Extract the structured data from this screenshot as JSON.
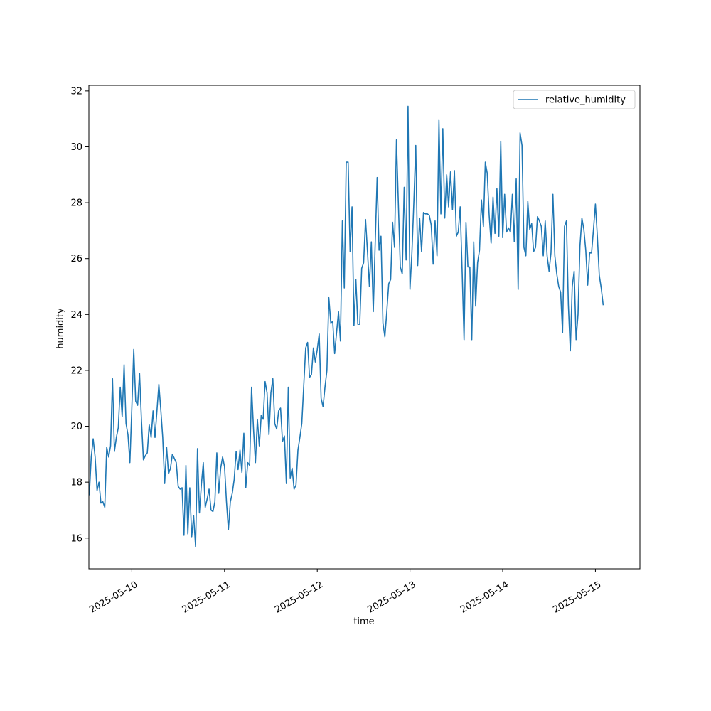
{
  "chart_data": {
    "type": "line",
    "title": "",
    "xlabel": "time",
    "ylabel": "humidity",
    "x_ticks": [
      "2025-05-10",
      "2025-05-11",
      "2025-05-12",
      "2025-05-13",
      "2025-05-14",
      "2025-05-15"
    ],
    "y_ticks": [
      "16",
      "18",
      "20",
      "22",
      "24",
      "26",
      "28",
      "30",
      "32"
    ],
    "xlim": [
      "2025-05-09 12:53",
      "2025-05-15 11:31"
    ],
    "ylim": [
      14.9,
      32.2
    ],
    "grid": false,
    "legend_position": "top-right",
    "series": [
      {
        "name": "relative_humidity",
        "color": "#1f77b4",
        "x_start": "2025-05-09 13:00",
        "x_step_hours": 0.5,
        "values": [
          17.55,
          18.9,
          19.55,
          18.9,
          17.7,
          18.0,
          17.25,
          17.3,
          17.1,
          19.25,
          18.9,
          19.3,
          21.7,
          19.1,
          19.6,
          19.95,
          21.4,
          20.35,
          22.2,
          20.1,
          19.7,
          18.7,
          20.65,
          22.75,
          20.9,
          20.75,
          21.9,
          20.2,
          18.8,
          18.95,
          19.05,
          20.05,
          19.6,
          20.55,
          19.6,
          20.55,
          21.5,
          20.6,
          19.6,
          17.95,
          19.25,
          18.3,
          18.5,
          19.0,
          18.85,
          18.7,
          17.85,
          17.75,
          17.8,
          16.1,
          18.6,
          16.15,
          17.8,
          16.05,
          16.8,
          15.7,
          19.2,
          16.9,
          17.9,
          18.7,
          17.1,
          17.4,
          17.75,
          17.0,
          16.95,
          17.3,
          19.05,
          17.6,
          18.5,
          18.9,
          18.55,
          17.3,
          16.3,
          17.3,
          17.6,
          18.1,
          19.1,
          18.45,
          19.15,
          18.35,
          19.75,
          17.8,
          18.7,
          18.6,
          21.4,
          19.9,
          18.7,
          20.25,
          19.3,
          20.4,
          20.25,
          21.6,
          21.2,
          19.7,
          21.2,
          21.7,
          20.1,
          19.9,
          20.55,
          20.65,
          19.45,
          19.65,
          17.95,
          21.4,
          18.15,
          18.5,
          17.75,
          17.9,
          19.15,
          19.6,
          20.1,
          21.45,
          22.8,
          23.0,
          21.75,
          21.85,
          22.8,
          22.3,
          22.75,
          23.3,
          21.0,
          20.7,
          21.4,
          22.0,
          24.6,
          23.7,
          23.75,
          22.6,
          23.35,
          24.1,
          23.05,
          27.35,
          24.95,
          29.45,
          29.45,
          26.25,
          27.85,
          23.6,
          25.25,
          23.65,
          23.65,
          25.65,
          25.85,
          27.4,
          26.25,
          25.0,
          26.6,
          24.1,
          26.55,
          28.9,
          26.3,
          26.8,
          23.7,
          23.2,
          24.1,
          25.1,
          25.25,
          27.3,
          26.4,
          30.25,
          27.95,
          25.7,
          25.45,
          28.55,
          25.95,
          31.45,
          24.9,
          26.2,
          28.0,
          30.05,
          25.75,
          27.45,
          26.25,
          27.65,
          27.6,
          27.6,
          27.55,
          27.2,
          25.8,
          27.35,
          26.1,
          30.95,
          27.6,
          30.65,
          27.45,
          29.0,
          27.85,
          29.1,
          27.75,
          29.15,
          26.8,
          26.95,
          27.85,
          25.55,
          23.1,
          27.3,
          25.7,
          25.7,
          23.1,
          26.6,
          24.3,
          25.85,
          26.3,
          28.1,
          27.15,
          29.45,
          29.05,
          27.55,
          26.55,
          28.2,
          26.9,
          28.5,
          26.8,
          30.2,
          26.75,
          28.3,
          26.95,
          27.1,
          26.95,
          28.3,
          26.6,
          28.85,
          24.9,
          30.5,
          30.05,
          26.4,
          26.1,
          28.05,
          27.05,
          27.25,
          26.25,
          26.4,
          27.5,
          27.35,
          27.15,
          26.1,
          27.35,
          26.1,
          25.55,
          26.2,
          28.3,
          26.1,
          25.45,
          25.0,
          24.8,
          23.35,
          27.15,
          27.35,
          24.35,
          22.7,
          25.0,
          25.55,
          23.1,
          24.0,
          26.45,
          27.45,
          27.05,
          26.3,
          25.05,
          26.2,
          26.2,
          27.05,
          27.95,
          26.8,
          25.4,
          24.95,
          24.35
        ]
      }
    ]
  }
}
